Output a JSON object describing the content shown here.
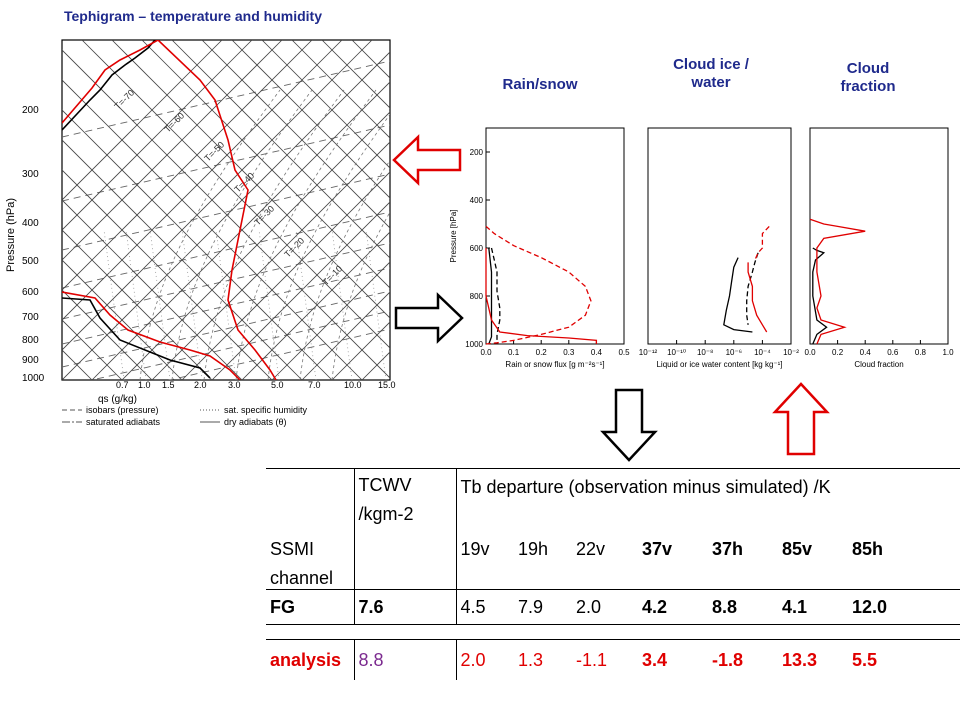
{
  "titles": {
    "tephigram": "Tephigram – temperature and humidity",
    "rain": "Rain/snow",
    "ice": "Cloud ice / water",
    "cloud": "Cloud fraction"
  },
  "tephigram": {
    "ylabel": "Pressure (hPa)",
    "xlabel": "qs (g/kg)",
    "pressure_ticks": [
      "200",
      "300",
      "400",
      "500",
      "600",
      "700",
      "800",
      "900",
      "1000"
    ],
    "q_ticks": [
      "0.7",
      "1.0",
      "1.5",
      "2.0",
      "3.0",
      "5.0",
      "7.0",
      "10.0",
      "15.0"
    ],
    "isotherm_labels": [
      "T=-70",
      "T=-60",
      "T=-50",
      "T=-40",
      "T=-30",
      "T=-20",
      "T=-10"
    ],
    "legend": [
      "isobars (pressure)",
      "sat. specific humidity",
      "saturated adiabats",
      "dry adiabats (θ)"
    ]
  },
  "chart_data": [
    {
      "type": "line",
      "title": "Rain/snow",
      "xlabel": "Rain or snow flux [g m⁻²s⁻¹]",
      "ylabel": "Pressure [hPa]",
      "xlim": [
        0,
        0.5
      ],
      "ylim": [
        1000,
        100
      ],
      "xticks": [
        "0.0",
        "0.1",
        "0.2",
        "0.3",
        "0.4",
        "0.5"
      ],
      "yticks": [
        "200",
        "400",
        "600",
        "800",
        "1000"
      ],
      "series": [
        {
          "style": "black dashed",
          "x": [
            0.02,
            0.03,
            0.04,
            0.04,
            0.05,
            0.05,
            0.04,
            0.04
          ],
          "y": [
            600,
            650,
            700,
            780,
            850,
            900,
            960,
            1000
          ]
        },
        {
          "style": "black solid",
          "x": [
            0.01,
            0.02,
            0.02,
            0.02,
            0.02,
            0.01
          ],
          "y": [
            600,
            700,
            800,
            900,
            970,
            1000
          ]
        },
        {
          "style": "red dashed",
          "x": [
            0.0,
            0.03,
            0.1,
            0.2,
            0.3,
            0.36,
            0.38,
            0.36,
            0.3,
            0.2,
            0.1,
            0.04,
            0.0
          ],
          "y": [
            510,
            540,
            590,
            640,
            700,
            760,
            820,
            880,
            930,
            960,
            985,
            995,
            1000
          ]
        },
        {
          "style": "red solid",
          "x": [
            0.0,
            0.0,
            0.02,
            0.05,
            0.15,
            0.3,
            0.4,
            0.4
          ],
          "y": [
            600,
            800,
            900,
            950,
            965,
            975,
            985,
            1000
          ]
        }
      ]
    },
    {
      "type": "line",
      "title": "Cloud ice / water",
      "xlabel": "Liquid or ice water content [kg kg⁻¹]",
      "xscale": "log",
      "xlim": [
        1e-12,
        0.01
      ],
      "ylim": [
        1000,
        100
      ],
      "xticks": [
        "10⁻¹²",
        "10⁻¹⁰",
        "10⁻⁸",
        "10⁻⁶",
        "10⁻⁴",
        "10⁻²"
      ],
      "series": [
        {
          "style": "black solid",
          "x": [
            2e-06,
            1e-06,
            7e-07,
            5e-07,
            3e-07,
            2e-07,
            1e-06,
            2e-05
          ],
          "y": [
            640,
            680,
            740,
            800,
            860,
            920,
            940,
            950
          ]
        },
        {
          "style": "black dashed",
          "x": [
            5e-05,
            3e-05,
            2e-05,
            1e-05,
            8e-06,
            8e-06,
            1e-05
          ],
          "y": [
            620,
            660,
            700,
            760,
            820,
            880,
            920
          ]
        },
        {
          "style": "red dashed",
          "x": [
            0.0003,
            0.0001,
            0.0001,
            5e-05,
            3e-05
          ],
          "y": [
            510,
            540,
            600,
            620,
            650
          ]
        },
        {
          "style": "red solid",
          "x": [
            1e-05,
            1e-05,
            2e-05,
            2e-05,
            4e-05,
            0.0001,
            0.0002
          ],
          "y": [
            660,
            700,
            760,
            820,
            880,
            920,
            950
          ]
        }
      ]
    },
    {
      "type": "line",
      "title": "Cloud fraction",
      "xlabel": "Cloud fraction",
      "xlim": [
        0,
        1.0
      ],
      "ylim": [
        1000,
        100
      ],
      "xticks": [
        "0.0",
        "0.2",
        "0.4",
        "0.6",
        "0.8",
        "1.0"
      ],
      "series": [
        {
          "style": "black solid",
          "x": [
            0.02,
            0.05,
            0.1,
            0.04,
            0.02,
            0.02,
            0.05,
            0.12,
            0.05,
            0.02
          ],
          "y": [
            600,
            610,
            620,
            650,
            700,
            800,
            900,
            930,
            960,
            1000
          ]
        },
        {
          "style": "red solid",
          "x": [
            0.0,
            0.1,
            0.2,
            0.4,
            0.1,
            0.05,
            0.05,
            0.08,
            0.05,
            0.08,
            0.25,
            0.08,
            0.05
          ],
          "y": [
            480,
            500,
            510,
            530,
            560,
            600,
            700,
            800,
            850,
            900,
            930,
            960,
            1000
          ]
        }
      ]
    },
    {
      "type": "table",
      "header": {
        "tcwv_line1": "TCWV",
        "tcwv_line2": "/kgm-2",
        "departure": "Tb departure (observation minus simulated) /K"
      },
      "channel_label": {
        "line1": "SSMI",
        "line2": "channel"
      },
      "channels": [
        "19v",
        "19h",
        "22v",
        "37v",
        "37h",
        "85v",
        "85h"
      ],
      "rows": [
        {
          "label": "FG",
          "tcwv": "7.6",
          "values": [
            "4.5",
            "7.9",
            "2.0",
            "4.2",
            "8.8",
            "4.1",
            "12.0"
          ]
        },
        {
          "label": "analysis",
          "tcwv": "8.8",
          "values": [
            "2.0",
            "1.3",
            "-1.1",
            "3.4",
            "-1.8",
            "13.3",
            "5.5"
          ]
        }
      ]
    }
  ],
  "colors": {
    "title": "#1f2a8c",
    "analysis": "#e00000",
    "tcwv_analysis": "#7b2a8f",
    "arrow_red": "#e00000"
  },
  "icons": [
    "arrow-left-red",
    "arrow-right-black",
    "arrow-down-black",
    "arrow-up-red"
  ]
}
